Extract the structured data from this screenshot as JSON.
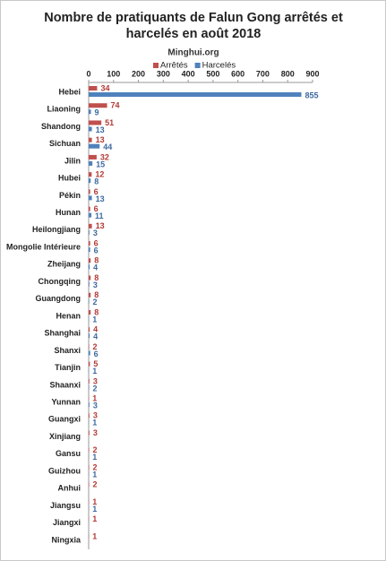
{
  "chart_data": {
    "type": "bar",
    "orientation": "horizontal",
    "title": "Nombre de pratiquants de Falun Gong arrêtés et harcelés en août 2018",
    "subtitle": "Minghui.org",
    "categories": [
      "Hebei",
      "Liaoning",
      "Shandong",
      "Sichuan",
      "Jilin",
      "Hubei",
      "Pékin",
      "Hunan",
      "Heilongjiang",
      "Mongolie Intérieure",
      "Zheijang",
      "Chongqing",
      "Guangdong",
      "Henan",
      "Shanghai",
      "Shanxi",
      "Tianjin",
      "Shaanxi",
      "Yunnan",
      "Guangxi",
      "Xinjiang",
      "Gansu",
      "Guizhou",
      "Anhui",
      "Jiangsu",
      "Jiangxi",
      "Ningxia"
    ],
    "series": [
      {
        "name": "Arrêtés",
        "color": "#c0504d",
        "label_color": "#b23b36",
        "values": [
          34,
          74,
          51,
          13,
          32,
          12,
          6,
          6,
          13,
          6,
          8,
          8,
          8,
          8,
          4,
          2,
          5,
          3,
          1,
          3,
          3,
          2,
          2,
          2,
          1,
          1,
          1
        ]
      },
      {
        "name": "Harcelés",
        "color": "#4f81bd",
        "label_color": "#3d6a9f",
        "values": [
          855,
          9,
          13,
          44,
          15,
          8,
          13,
          11,
          3,
          6,
          4,
          3,
          2,
          1,
          4,
          6,
          1,
          2,
          3,
          1,
          null,
          1,
          1,
          null,
          1,
          null,
          null
        ]
      }
    ],
    "xlim": [
      0,
      900
    ],
    "xticks": [
      0,
      100,
      200,
      300,
      400,
      500,
      600,
      700,
      800,
      900
    ],
    "legend": "top",
    "grid": false
  }
}
